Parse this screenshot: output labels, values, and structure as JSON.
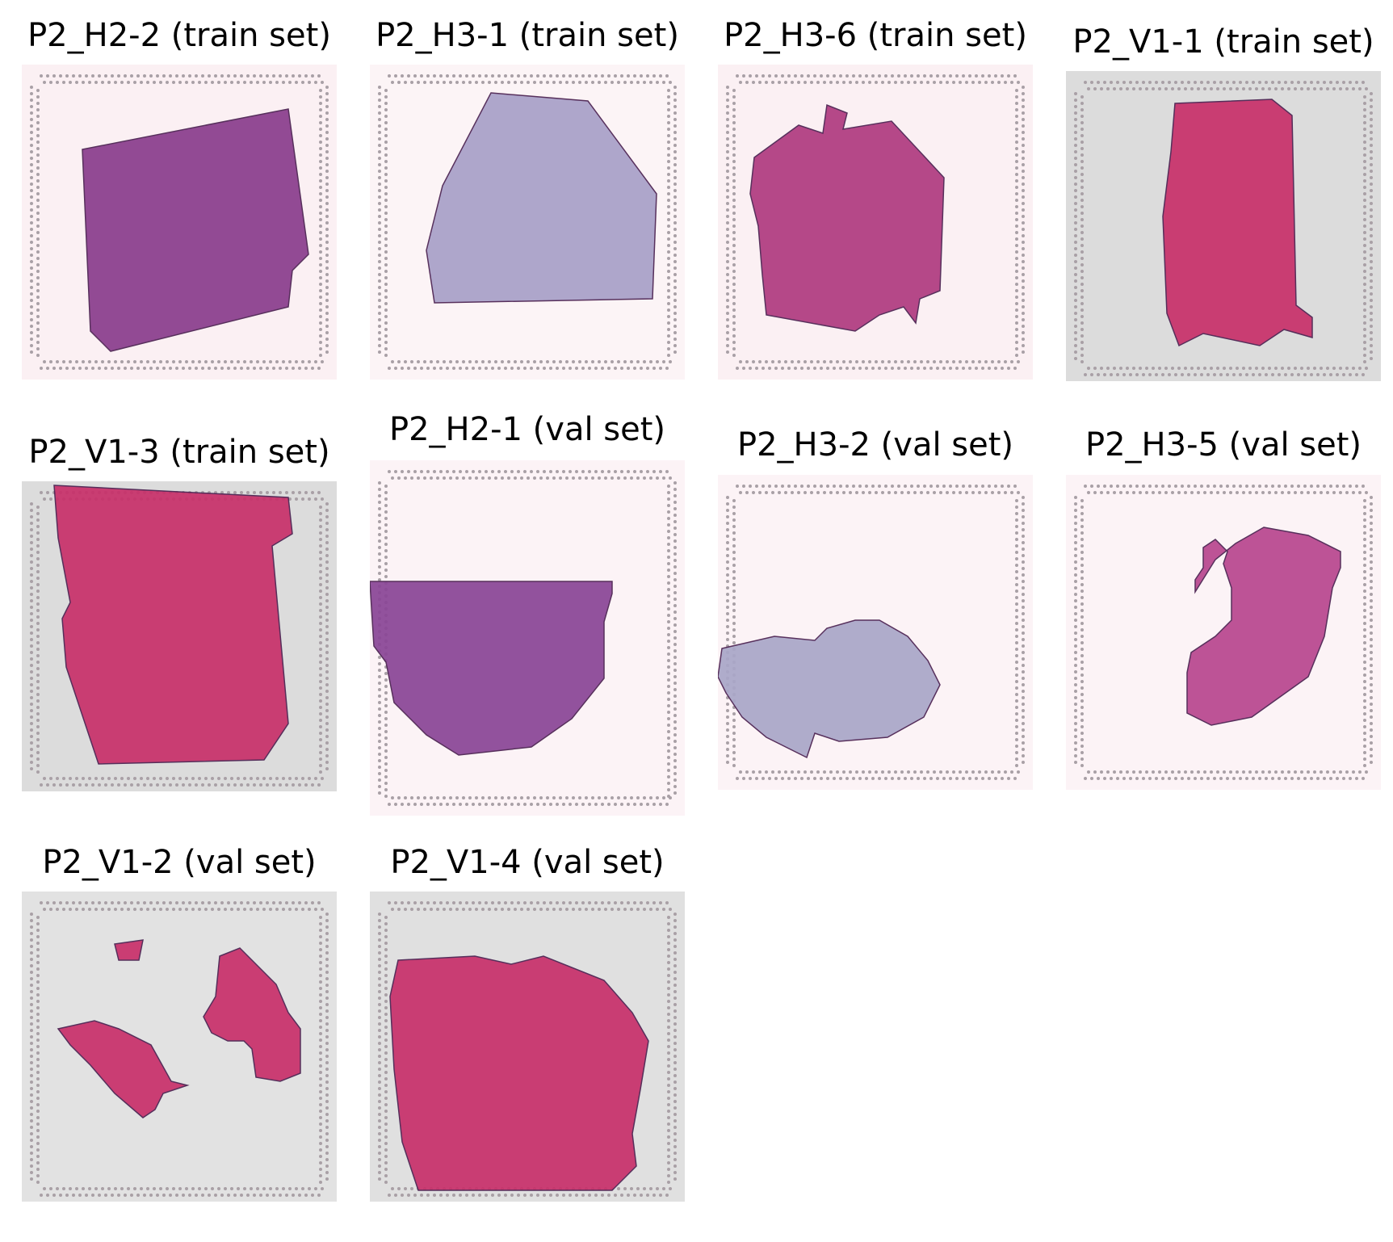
{
  "figure": {
    "panels": [
      {
        "label": "P2_H2-2 (train set)",
        "background": "#fbf0f3",
        "tissue_color": "#8a3c8c",
        "tissue_shape": "tilted-square"
      },
      {
        "label": "P2_H3-1 (train set)",
        "background": "#fcf4f6",
        "tissue_color": "#a8a0c8",
        "tissue_shape": "wedge"
      },
      {
        "label": "P2_H3-6 (train set)",
        "background": "#fbf0f3",
        "tissue_color": "#b03a80",
        "tissue_shape": "ragged-square"
      },
      {
        "label": "P2_V1-1 (train set)",
        "background": "#dcdcdc",
        "tissue_color": "#c8306a",
        "tissue_shape": "tall-slab"
      },
      {
        "label": "P2_V1-3 (train set)",
        "background": "#dcdcdc",
        "tissue_color": "#c8306a",
        "tissue_shape": "full-square"
      },
      {
        "label": "P2_H2-1 (val set)",
        "background": "#fcf3f6",
        "tissue_color": "#8a4596",
        "tissue_shape": "half-bowl"
      },
      {
        "label": "P2_H3-2 (val set)",
        "background": "#fcf3f6",
        "tissue_color": "#a9a6c8",
        "tissue_shape": "lobes"
      },
      {
        "label": "P2_H3-5 (val set)",
        "background": "#fcf3f6",
        "tissue_color": "#b8468e",
        "tissue_shape": "l-shape"
      },
      {
        "label": "P2_V1-2 (val set)",
        "background": "#e2e2e2",
        "tissue_color": "#c8306a",
        "tissue_shape": "fragments"
      },
      {
        "label": "P2_V1-4 (val set)",
        "background": "#e0e0e0",
        "tissue_color": "#c8306a",
        "tissue_shape": "large-square"
      }
    ]
  }
}
